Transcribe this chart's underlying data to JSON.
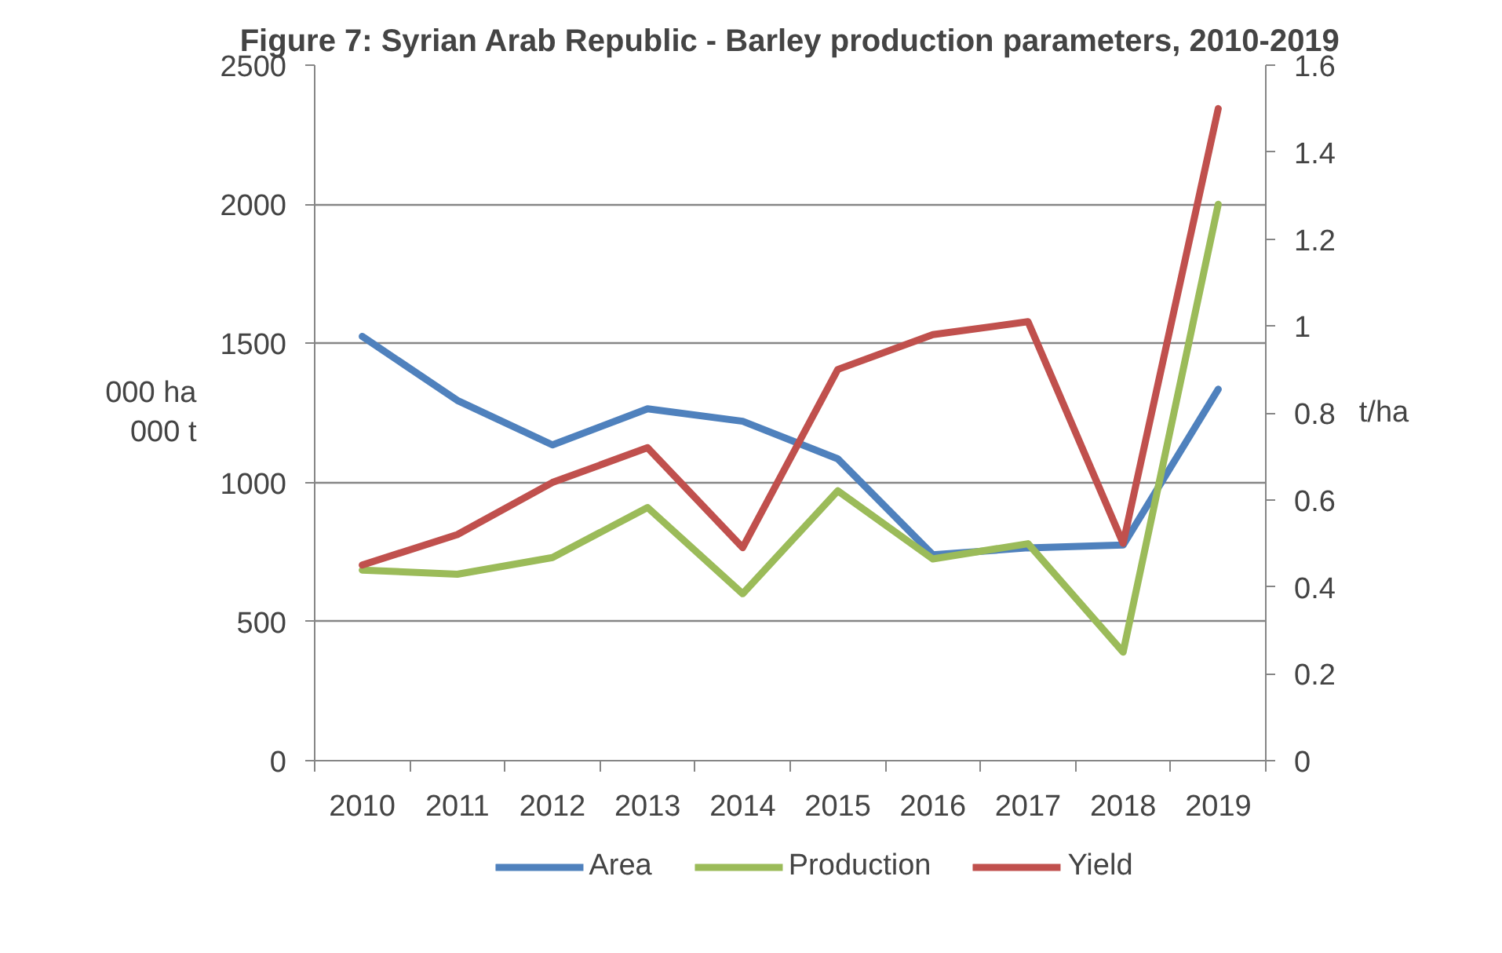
{
  "chart_data": {
    "type": "line",
    "title": "Figure 7: Syrian Arab Republic - Barley production parameters, 2010-2019",
    "ylabel": "000 ha\n000 t",
    "y2label": "t/ha",
    "categories": [
      "2010",
      "2011",
      "2012",
      "2013",
      "2014",
      "2015",
      "2016",
      "2017",
      "2018",
      "2019"
    ],
    "series": [
      {
        "name": "Area",
        "color": "#4f81bd",
        "values": [
          1525,
          1295,
          1135,
          1265,
          1220,
          1085,
          740,
          765,
          775,
          1335
        ]
      },
      {
        "name": "Production",
        "color": "#9bbb59",
        "values": [
          685,
          670,
          730,
          910,
          600,
          970,
          725,
          780,
          390,
          2000
        ]
      },
      {
        "name": "Yield",
        "color": "#c0504d",
        "axis": "y2",
        "values": [
          0.45,
          0.52,
          0.64,
          0.72,
          0.49,
          0.9,
          0.98,
          1.01,
          0.5,
          1.5
        ]
      }
    ],
    "ylim": [
      0,
      2500
    ],
    "yticks": [
      0,
      500,
      1000,
      1500,
      2000,
      2500
    ],
    "y2lim": [
      0,
      1.6
    ],
    "y2ticks": [
      0,
      0.2,
      0.4,
      0.6,
      0.8,
      1,
      1.2,
      1.4,
      1.6
    ],
    "grid": "y",
    "legend": "bottom",
    "marker": "none",
    "line_style": "solid"
  }
}
